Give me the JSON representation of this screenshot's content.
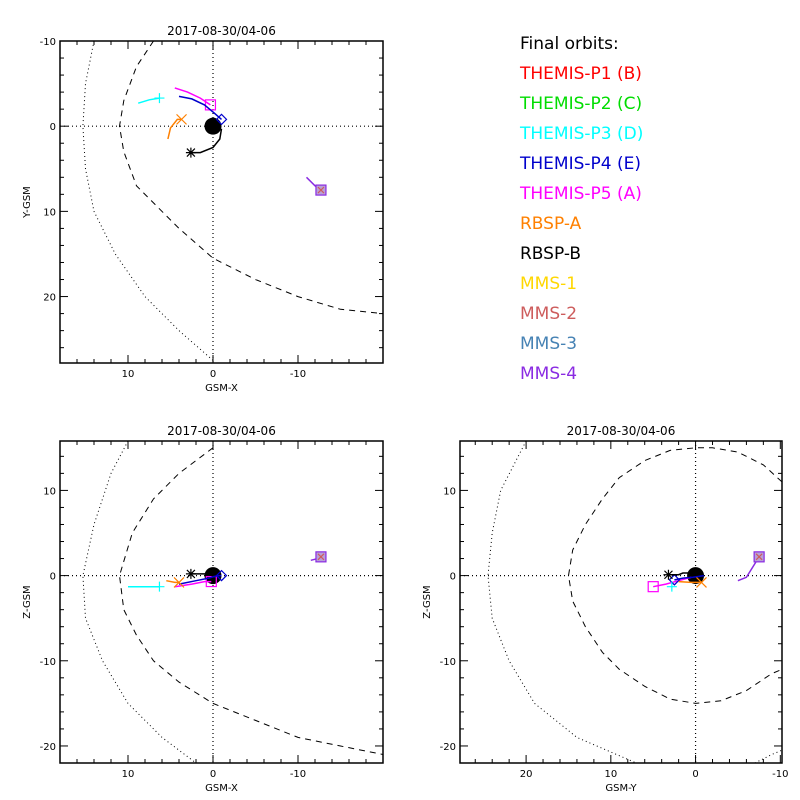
{
  "legend": {
    "title": "Final orbits:",
    "items": [
      {
        "label": "THEMIS-P1 (B)",
        "color": "#ff0000"
      },
      {
        "label": "THEMIS-P2 (C)",
        "color": "#00dd00"
      },
      {
        "label": "THEMIS-P3 (D)",
        "color": "#00ffff"
      },
      {
        "label": "THEMIS-P4 (E)",
        "color": "#0000cc"
      },
      {
        "label": "THEMIS-P5 (A)",
        "color": "#ff00ff"
      },
      {
        "label": "RBSP-A",
        "color": "#ff8000"
      },
      {
        "label": "RBSP-B",
        "color": "#000000"
      },
      {
        "label": "MMS-1",
        "color": "#ffd700"
      },
      {
        "label": "MMS-2",
        "color": "#cd5c5c"
      },
      {
        "label": "MMS-3",
        "color": "#4682b4"
      },
      {
        "label": "MMS-4",
        "color": "#8a2be2"
      }
    ]
  },
  "chart_data": [
    {
      "type": "line",
      "title": "2017-08-30/04-06",
      "xlabel": "GSM-X",
      "ylabel": "Y-GSM",
      "xlim": [
        18,
        -20
      ],
      "ylim": [
        -10,
        27.8
      ],
      "xticks": [
        10,
        0,
        -10
      ],
      "yticks": [
        -10,
        0,
        10,
        20
      ],
      "reference_lines": {
        "x0": true,
        "y0": true
      },
      "boundaries": [
        {
          "name": "bow-shock",
          "style": "dotted",
          "points": [
            [
              14,
              -10
            ],
            [
              15,
              -5
            ],
            [
              15.3,
              0
            ],
            [
              15,
              5
            ],
            [
              14,
              10
            ],
            [
              11.5,
              15
            ],
            [
              8,
              20
            ],
            [
              4,
              24
            ],
            [
              0,
              27.5
            ]
          ]
        },
        {
          "name": "magnetopause",
          "style": "dashed",
          "points": [
            [
              7,
              -10
            ],
            [
              9,
              -7
            ],
            [
              10.5,
              -3
            ],
            [
              11,
              0
            ],
            [
              10.5,
              3
            ],
            [
              9,
              7
            ],
            [
              7,
              9
            ],
            [
              4,
              12
            ],
            [
              0,
              15.5
            ],
            [
              -5,
              18
            ],
            [
              -10,
              20
            ],
            [
              -15,
              21.5
            ],
            [
              -20,
              22
            ]
          ]
        }
      ],
      "earth": {
        "x": 0,
        "y": 0,
        "r": 1
      },
      "tracks": [
        {
          "name": "THEMIS-P5",
          "color": "#ff00ff",
          "marker": "square",
          "points": [
            [
              4.5,
              -4.5
            ],
            [
              3,
              -4
            ],
            [
              1.5,
              -3.3
            ],
            [
              0.3,
              -2.5
            ]
          ]
        },
        {
          "name": "THEMIS-P4",
          "color": "#0000cc",
          "marker": "diamond",
          "points": [
            [
              4,
              -3.5
            ],
            [
              2.5,
              -3.2
            ],
            [
              1,
              -2.5
            ],
            [
              -0.2,
              -1.5
            ],
            [
              -1,
              -0.8
            ]
          ]
        },
        {
          "name": "THEMIS-P3",
          "color": "#00ffff",
          "marker": "plus",
          "points": [
            [
              8.8,
              -2.7
            ],
            [
              7.5,
              -3.1
            ],
            [
              6.3,
              -3.3
            ]
          ]
        },
        {
          "name": "RBSP-A",
          "color": "#ff8000",
          "marker": "x",
          "points": [
            [
              5.3,
              1.5
            ],
            [
              5,
              0.2
            ],
            [
              4.2,
              -0.8
            ],
            [
              3.7,
              -0.8
            ]
          ]
        },
        {
          "name": "RBSP-B",
          "color": "#000000",
          "marker": "asterisk",
          "points": [
            [
              -1,
              0.3
            ],
            [
              -0.8,
              1.5
            ],
            [
              0,
              2.5
            ],
            [
              1.5,
              3.1
            ],
            [
              2.6,
              3.1
            ]
          ]
        },
        {
          "name": "MMS-4",
          "color": "#8a2be2",
          "marker": "square-star",
          "points": [
            [
              -11,
              6
            ],
            [
              -12,
              7
            ],
            [
              -12.7,
              7.5
            ]
          ]
        }
      ]
    },
    {
      "type": "line",
      "title": "2017-08-30/04-06",
      "xlabel": "GSM-X",
      "ylabel": "Z-GSM",
      "xlim": [
        18,
        -20
      ],
      "ylim": [
        15.8,
        -22
      ],
      "xticks": [
        10,
        0,
        -10
      ],
      "yticks": [
        10,
        0,
        -10,
        -20
      ],
      "reference_lines": {
        "x0": true,
        "y0": true
      },
      "boundaries": [
        {
          "name": "bow-shock",
          "style": "dotted",
          "points": [
            [
              10,
              15.8
            ],
            [
              12,
              12
            ],
            [
              14,
              6
            ],
            [
              15.3,
              0
            ],
            [
              15,
              -5
            ],
            [
              13,
              -10
            ],
            [
              10,
              -15
            ],
            [
              6,
              -19
            ],
            [
              2,
              -22
            ]
          ]
        },
        {
          "name": "magnetopause",
          "style": "dashed",
          "points": [
            [
              0,
              15
            ],
            [
              4,
              12
            ],
            [
              7,
              9
            ],
            [
              9.5,
              5
            ],
            [
              11,
              0
            ],
            [
              10.5,
              -4
            ],
            [
              9,
              -7
            ],
            [
              7,
              -10
            ],
            [
              4,
              -12.5
            ],
            [
              0,
              -15
            ],
            [
              -5,
              -17
            ],
            [
              -10,
              -19
            ],
            [
              -15,
              -20
            ],
            [
              -20,
              -21
            ]
          ]
        }
      ],
      "earth": {
        "x": 0,
        "y": 0,
        "r": 1
      },
      "tracks": [
        {
          "name": "THEMIS-P5",
          "color": "#ff00ff",
          "marker": "square",
          "points": [
            [
              4.5,
              -1.3
            ],
            [
              2.5,
              -1
            ],
            [
              1,
              -0.7
            ],
            [
              0.2,
              -0.7
            ]
          ]
        },
        {
          "name": "THEMIS-P4",
          "color": "#0000cc",
          "marker": "diamond",
          "points": [
            [
              4,
              -1
            ],
            [
              2,
              -0.6
            ],
            [
              0.5,
              -0.3
            ],
            [
              -0.5,
              0
            ],
            [
              -1,
              0
            ]
          ]
        },
        {
          "name": "THEMIS-P3",
          "color": "#00ffff",
          "marker": "plus",
          "points": [
            [
              10,
              -1.3
            ],
            [
              8,
              -1.3
            ],
            [
              6.3,
              -1.3
            ]
          ]
        },
        {
          "name": "RBSP-A",
          "color": "#ff8000",
          "marker": "x",
          "points": [
            [
              5.5,
              -0.6
            ],
            [
              4.5,
              -0.8
            ],
            [
              4,
              -0.8
            ]
          ]
        },
        {
          "name": "RBSP-B",
          "color": "#000000",
          "marker": "asterisk",
          "points": [
            [
              0,
              0
            ],
            [
              1,
              0.2
            ],
            [
              2.6,
              0.2
            ]
          ]
        },
        {
          "name": "MMS-4",
          "color": "#8a2be2",
          "marker": "square-star",
          "points": [
            [
              -11.5,
              1.8
            ],
            [
              -12.3,
              2
            ],
            [
              -12.7,
              2.2
            ]
          ]
        }
      ]
    },
    {
      "type": "line",
      "title": "2017-08-30/04-06",
      "xlabel": "GSM-Y",
      "ylabel": "Z-GSM",
      "xlim": [
        27.8,
        -10.2
      ],
      "ylim": [
        15.8,
        -22
      ],
      "xticks": [
        20,
        10,
        0,
        -10
      ],
      "yticks": [
        10,
        0,
        -10,
        -20
      ],
      "reference_lines": {
        "x0": true,
        "y0": true
      },
      "boundaries": [
        {
          "name": "bow-shock",
          "style": "dotted",
          "points": [
            [
              20,
              15.8
            ],
            [
              23,
              10
            ],
            [
              24,
              5
            ],
            [
              24.5,
              0
            ],
            [
              24,
              -5
            ],
            [
              22,
              -10
            ],
            [
              19,
              -15
            ],
            [
              14,
              -19
            ],
            [
              7,
              -22
            ]
          ]
        },
        {
          "name": "bow-shock-right",
          "style": "dotted",
          "points": [
            [
              -7,
              -22
            ],
            [
              -9,
              -21
            ],
            [
              -10.2,
              -20.5
            ]
          ]
        },
        {
          "name": "magnetopause",
          "style": "dashed",
          "points": [
            [
              -10.2,
              11
            ],
            [
              -8,
              13
            ],
            [
              -5,
              14.5
            ],
            [
              -2,
              15
            ],
            [
              0,
              15
            ],
            [
              3,
              14.7
            ],
            [
              6,
              13.5
            ],
            [
              9,
              11.5
            ],
            [
              11,
              9
            ],
            [
              13,
              6
            ],
            [
              14.5,
              3
            ],
            [
              15,
              0
            ],
            [
              14.5,
              -3
            ],
            [
              13,
              -6
            ],
            [
              11,
              -9
            ],
            [
              9,
              -11
            ],
            [
              6,
              -13
            ],
            [
              3,
              -14.5
            ],
            [
              0,
              -15
            ],
            [
              -3,
              -14.7
            ],
            [
              -6,
              -13.5
            ],
            [
              -9,
              -11.5
            ],
            [
              -10.2,
              -11
            ]
          ]
        }
      ],
      "earth": {
        "x": 0,
        "y": 0,
        "r": 1
      },
      "tracks": [
        {
          "name": "THEMIS-P5",
          "color": "#ff00ff",
          "marker": "square",
          "points": [
            [
              0.5,
              -0.2
            ],
            [
              2,
              -0.6
            ],
            [
              3.5,
              -1
            ],
            [
              5,
              -1.3
            ]
          ]
        },
        {
          "name": "THEMIS-P4",
          "color": "#0000cc",
          "marker": "diamond",
          "points": [
            [
              -1,
              0
            ],
            [
              0.3,
              -0.2
            ],
            [
              1.5,
              -0.3
            ],
            [
              2.5,
              -0.5
            ]
          ]
        },
        {
          "name": "THEMIS-P3",
          "color": "#00ffff",
          "marker": "plus",
          "points": [
            [
              2.8,
              -1.3
            ]
          ]
        },
        {
          "name": "RBSP-A",
          "color": "#ff8000",
          "marker": "x",
          "points": [
            [
              2,
              -0.7
            ],
            [
              0.5,
              -0.8
            ],
            [
              -0.5,
              -0.8
            ],
            [
              -0.7,
              -0.8
            ]
          ]
        },
        {
          "name": "RBSP-B",
          "color": "#000000",
          "marker": "asterisk",
          "points": [
            [
              0.5,
              0.3
            ],
            [
              1.5,
              0.3
            ],
            [
              2,
              0.1
            ],
            [
              3.2,
              0.1
            ]
          ]
        },
        {
          "name": "MMS-4",
          "color": "#8a2be2",
          "marker": "square-star",
          "points": [
            [
              -5,
              -0.6
            ],
            [
              -6,
              -0.2
            ],
            [
              -7.5,
              2.2
            ]
          ]
        }
      ]
    }
  ]
}
